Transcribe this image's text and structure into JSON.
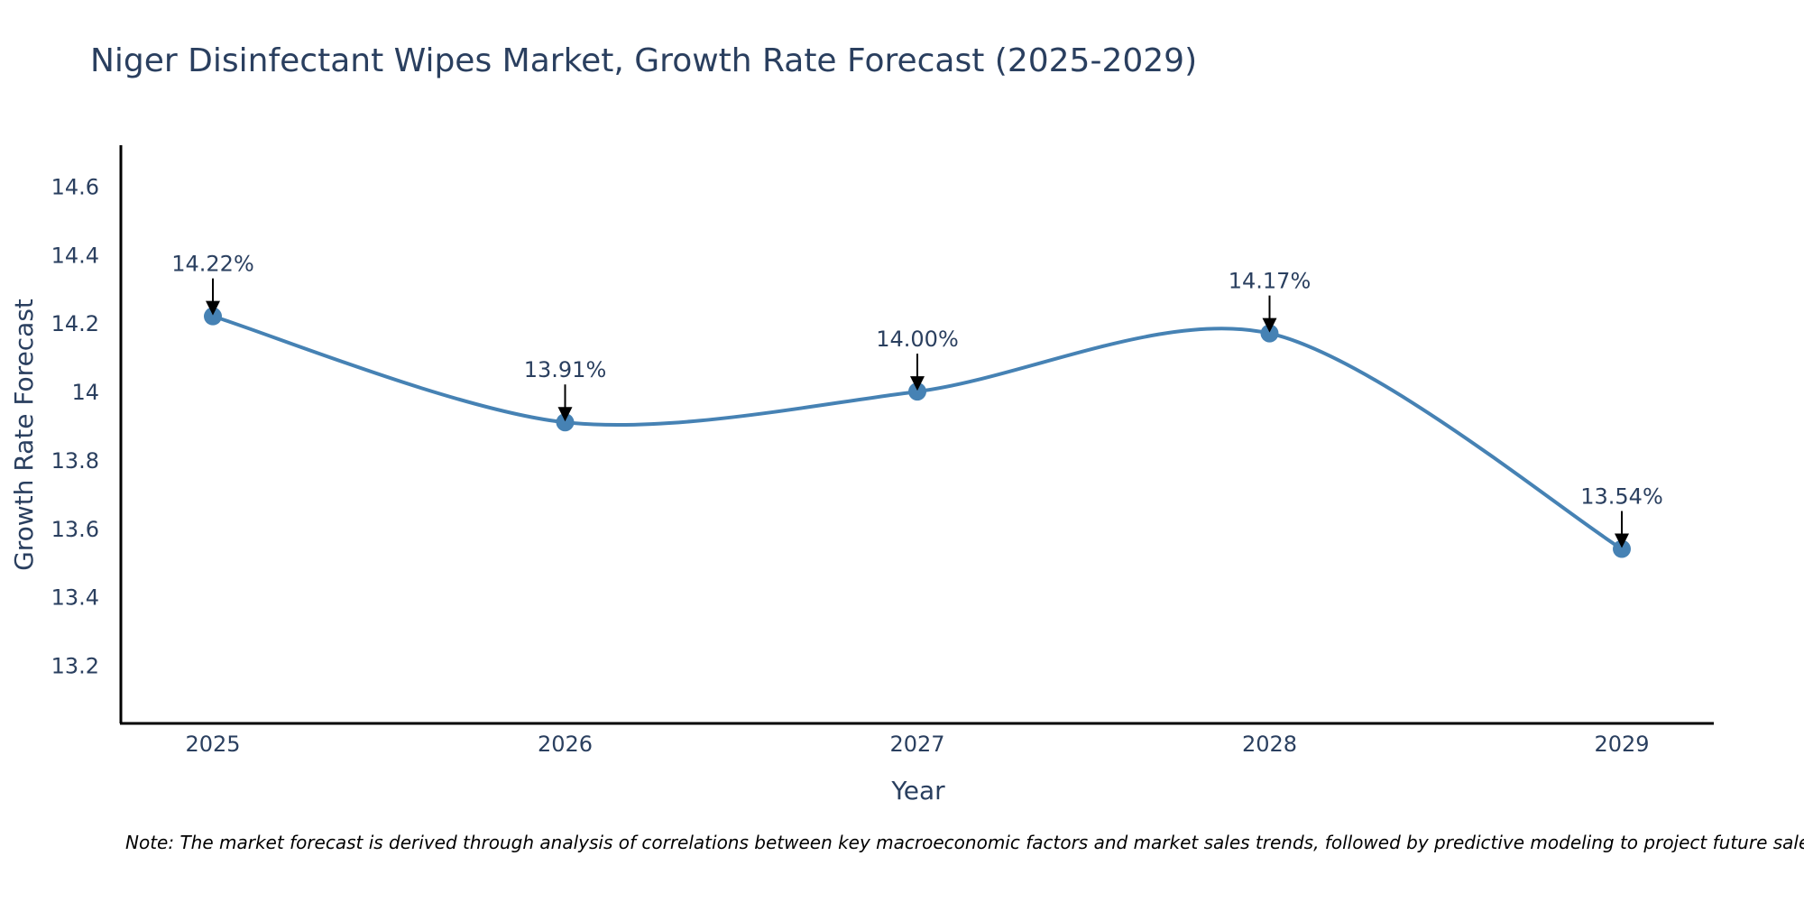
{
  "chart_data": {
    "type": "line",
    "title": "Niger Disinfectant Wipes Market, Growth Rate Forecast (2025-2029)",
    "xlabel": "Year",
    "ylabel": "Growth Rate Forecast",
    "categories": [
      "2025",
      "2026",
      "2027",
      "2028",
      "2029"
    ],
    "series": [
      {
        "name": "Growth Rate Forecast",
        "values": [
          14.22,
          13.91,
          14.0,
          14.17,
          13.54
        ]
      }
    ],
    "data_labels": [
      "14.22%",
      "13.91%",
      "14.00%",
      "14.17%",
      "13.54%"
    ],
    "y_ticks": [
      13.2,
      13.4,
      13.6,
      13.8,
      14,
      14.2,
      14.4,
      14.6
    ],
    "y_tick_labels": [
      "13.2",
      "13.4",
      "13.6",
      "13.8",
      "14",
      "14.2",
      "14.4",
      "14.6"
    ],
    "ylim": [
      13.03,
      14.72
    ],
    "grid": false,
    "line_shape": "spline",
    "colors": {
      "line": "#4682b4",
      "marker": "#4682b4",
      "arrow": "#000000",
      "text": "#2a3f5f",
      "axis": "#000000"
    },
    "note": "Note: The market forecast is derived through analysis of correlations between key macroeconomic factors and market sales trends, followed by predictive modeling to project future sales."
  }
}
